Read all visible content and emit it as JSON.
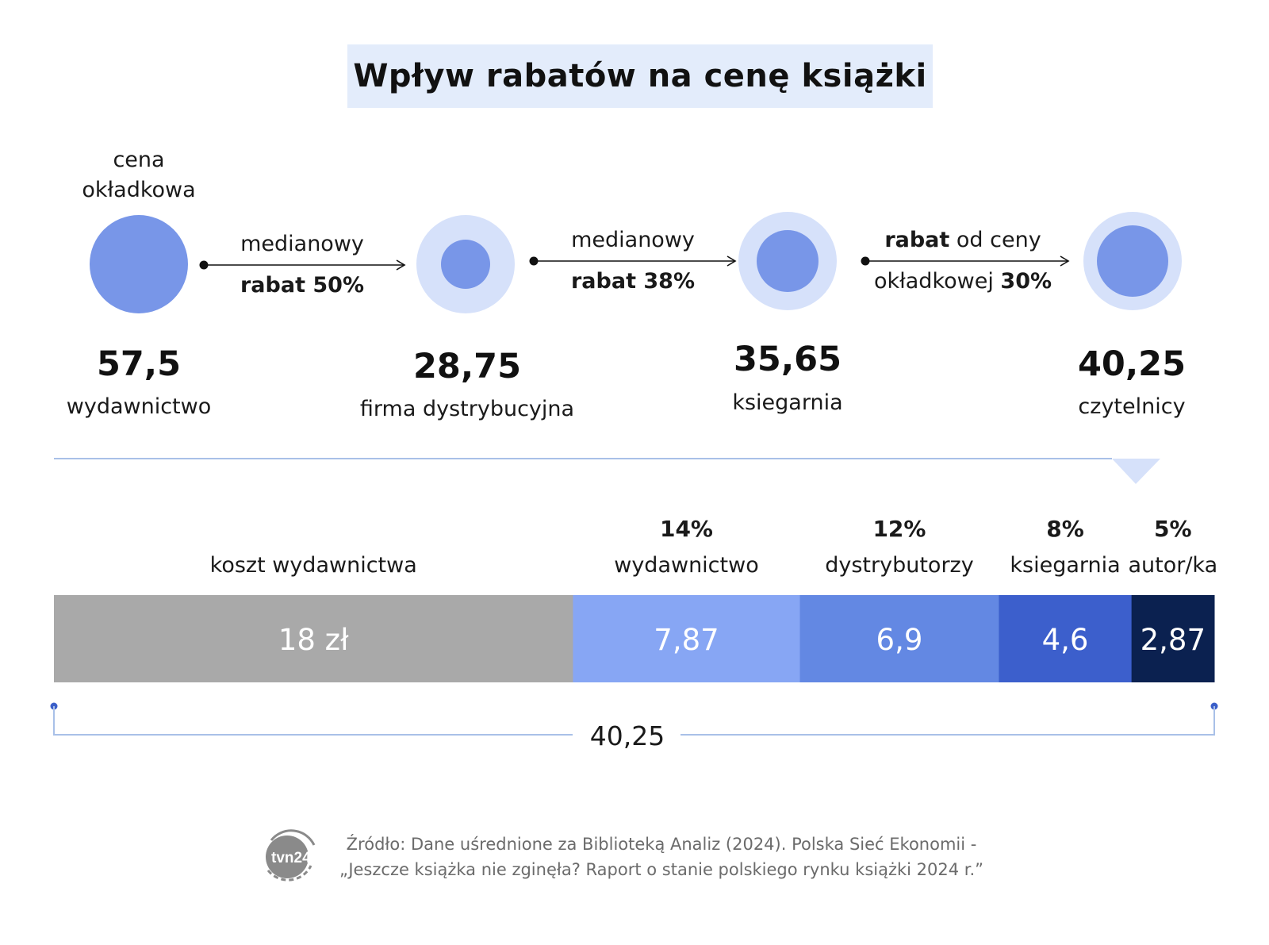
{
  "title": "Wpływ rabatów na cenę książki",
  "top_label": "cena\nokładkowa",
  "stages": [
    {
      "value": "57,5",
      "label": "wydawnictwo"
    },
    {
      "value": "28,75",
      "label": "firma dystrybucyjna"
    },
    {
      "value": "35,65",
      "label": "ksiegarnia"
    },
    {
      "value": "40,25",
      "label": "czytelnicy"
    }
  ],
  "arrows": [
    {
      "line1": "medianowy",
      "line2_bold": "rabat 50%"
    },
    {
      "line1": "medianowy",
      "line2_bold": "rabat 38%"
    },
    {
      "line1_bold": "rabat",
      "line1_rest": " od ceny",
      "line2_rest": "okładkowej ",
      "line2_bold": "30%"
    }
  ],
  "colors": {
    "circle": "#7896e8",
    "halo": "#d6e1fa",
    "title_bg": "#e3ecfb",
    "line": "#a9c0e8",
    "bracket": "#3b5fc9"
  },
  "chart_data": {
    "type": "bar",
    "orientation": "horizontal-stacked",
    "title": "Wpływ rabatów na cenę książki",
    "total": 40.25,
    "total_label": "40,25",
    "segments": [
      {
        "label": "koszt wydawnictwa",
        "pct": "",
        "value": 18,
        "value_label": "18 zł",
        "color": "#a9a9a9"
      },
      {
        "label": "wydawnictwo",
        "pct": "14%",
        "value": 7.87,
        "value_label": "7,87",
        "color": "#87a6f4"
      },
      {
        "label": "dystrybutorzy",
        "pct": "12%",
        "value": 6.9,
        "value_label": "6,9",
        "color": "#6388e3"
      },
      {
        "label": "ksiegarnia",
        "pct": "8%",
        "value": 4.6,
        "value_label": "4,6",
        "color": "#3c5fcc"
      },
      {
        "label": "autor/ka",
        "pct": "5%",
        "value": 2.87,
        "value_label": "2,87",
        "color": "#0b2150"
      }
    ]
  },
  "source": {
    "line1": "Źródło: Dane uśrednione za Biblioteką Analiz (2024). Polska Sieć Ekonomii -",
    "line2": "„Jeszcze książka  nie zginęła? Raport o stanie  polskiego rynku  książki 2024 r.”",
    "logo_text": "tvn24"
  }
}
